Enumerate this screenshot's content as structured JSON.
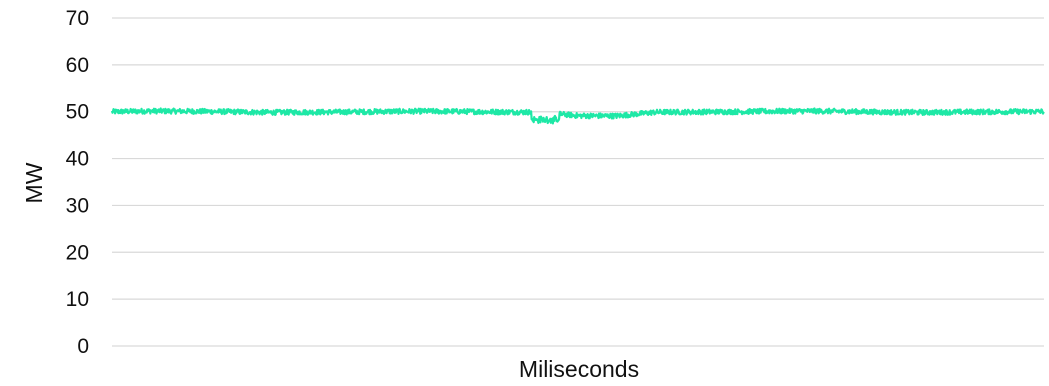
{
  "chart_data": {
    "type": "line",
    "title": "",
    "xlabel": "Miliseconds",
    "ylabel": "MW",
    "ylim": [
      0,
      70
    ],
    "yticks": [
      0,
      10,
      20,
      30,
      40,
      50,
      60,
      70
    ],
    "grid": true,
    "legend": "none",
    "series": [
      {
        "color": "#1ee8a6",
        "baseline": 50,
        "dip": {
          "x_range": [
            0.45,
            0.48
          ],
          "value": 48.3
        },
        "values": [
          50.0,
          50.3,
          50.2,
          50.0,
          49.7,
          49.8,
          49.9,
          50.1,
          50.2,
          50.1,
          49.9,
          49.8,
          48.3,
          48.2,
          49.8,
          49.9,
          50.0,
          50.2,
          50.3,
          50.1,
          49.8,
          49.7,
          49.9,
          50.0,
          50.1
        ]
      }
    ]
  }
}
